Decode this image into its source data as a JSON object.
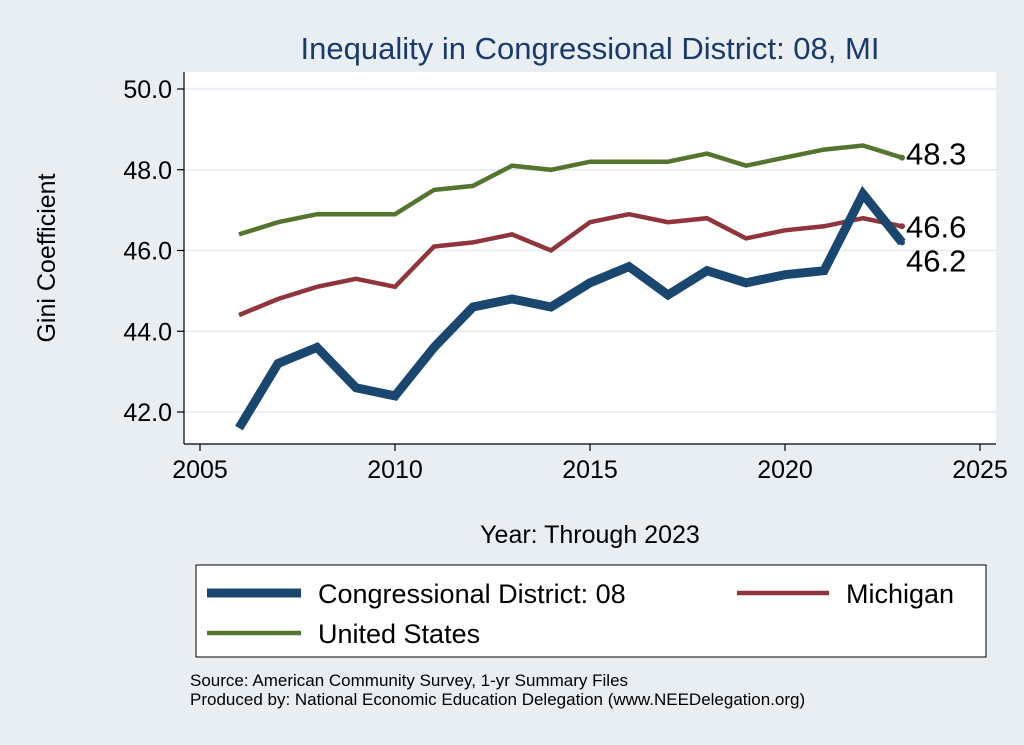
{
  "chart_data": {
    "type": "line",
    "title": "Inequality in Congressional District:  08, MI",
    "xlabel": "Year: Through 2023",
    "ylabel": "Gini Coefficient",
    "xlim": [
      2005,
      2025
    ],
    "ylim": [
      41.5,
      50.5
    ],
    "x_ticks": [
      2005,
      2010,
      2015,
      2020,
      2025
    ],
    "y_ticks": [
      42.0,
      44.0,
      46.0,
      48.0,
      50.0
    ],
    "grid": true,
    "legend_position": "bottom",
    "x": [
      2006,
      2007,
      2008,
      2009,
      2010,
      2011,
      2012,
      2013,
      2014,
      2015,
      2016,
      2017,
      2018,
      2019,
      2020,
      2021,
      2022,
      2023
    ],
    "series": [
      {
        "name": "Congressional District:  08",
        "color": "#1a476f",
        "values": [
          41.6,
          43.2,
          43.6,
          42.6,
          42.4,
          43.6,
          44.6,
          44.8,
          44.6,
          45.2,
          45.6,
          44.9,
          45.5,
          45.2,
          45.4,
          45.5,
          47.4,
          46.2
        ],
        "end_label": "46.2"
      },
      {
        "name": "Michigan",
        "color": "#90353b",
        "values": [
          44.4,
          44.8,
          45.1,
          45.3,
          45.1,
          46.1,
          46.2,
          46.4,
          46.0,
          46.7,
          46.9,
          46.7,
          46.8,
          46.3,
          46.5,
          46.6,
          46.8,
          46.6
        ],
        "end_label": "46.6"
      },
      {
        "name": "United States",
        "color": "#55752f",
        "values": [
          46.4,
          46.7,
          46.9,
          46.9,
          46.9,
          47.5,
          47.6,
          48.1,
          48.0,
          48.2,
          48.2,
          48.2,
          48.4,
          48.1,
          48.3,
          48.5,
          48.6,
          48.3
        ],
        "end_label": "48.3"
      }
    ]
  },
  "footer": {
    "source": "Source: American Community Survey, 1-yr Summary Files",
    "produced_by": "Produced by: National Economic Education Delegation (www.NEEDelegation.org)"
  },
  "colors": {
    "background": "#e9eef3",
    "plot_background": "#ffffff",
    "title": "#1a3a6b",
    "grid": "#e4ebf2"
  }
}
